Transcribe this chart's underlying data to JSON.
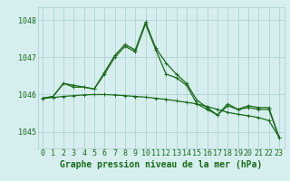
{
  "background_color": "#d6eeee",
  "grid_color": "#aacccc",
  "line_color": "#1a6b1a",
  "xlabel": "Graphe pression niveau de la mer (hPa)",
  "xlabel_fontsize": 7,
  "tick_fontsize": 6,
  "ytick_labels": [
    1045,
    1046,
    1047,
    1048
  ],
  "ylim": [
    1044.55,
    1048.35
  ],
  "xlim": [
    -0.5,
    23.5
  ],
  "xtick_labels": [
    "0",
    "1",
    "2",
    "3",
    "4",
    "5",
    "6",
    "7",
    "8",
    "9",
    "10",
    "11",
    "12",
    "13",
    "14",
    "15",
    "16",
    "17",
    "18",
    "19",
    "20",
    "21",
    "22",
    "23"
  ],
  "series1_y": [
    1045.9,
    1045.95,
    1046.3,
    1046.25,
    1046.2,
    1046.15,
    1046.6,
    1047.05,
    1047.35,
    1047.2,
    1047.95,
    1047.25,
    1046.85,
    1046.55,
    1046.3,
    1045.85,
    1045.65,
    1045.45,
    1045.75,
    1045.6,
    1045.7,
    1045.65,
    1045.65,
    1044.85
  ],
  "series2_y": [
    1045.9,
    1045.92,
    1045.95,
    1045.97,
    1045.99,
    1046.0,
    1046.0,
    1045.99,
    1045.97,
    1045.95,
    1045.93,
    1045.9,
    1045.87,
    1045.83,
    1045.79,
    1045.75,
    1045.68,
    1045.6,
    1045.52,
    1045.47,
    1045.43,
    1045.38,
    1045.3,
    1044.85
  ],
  "series3_y": [
    1045.9,
    1045.95,
    1046.3,
    1046.2,
    1046.2,
    1046.15,
    1046.55,
    1047.0,
    1047.3,
    1047.15,
    1047.9,
    1047.2,
    1046.55,
    1046.45,
    1046.25,
    1045.75,
    1045.6,
    1045.45,
    1045.7,
    1045.6,
    1045.65,
    1045.6,
    1045.6,
    1044.85
  ]
}
